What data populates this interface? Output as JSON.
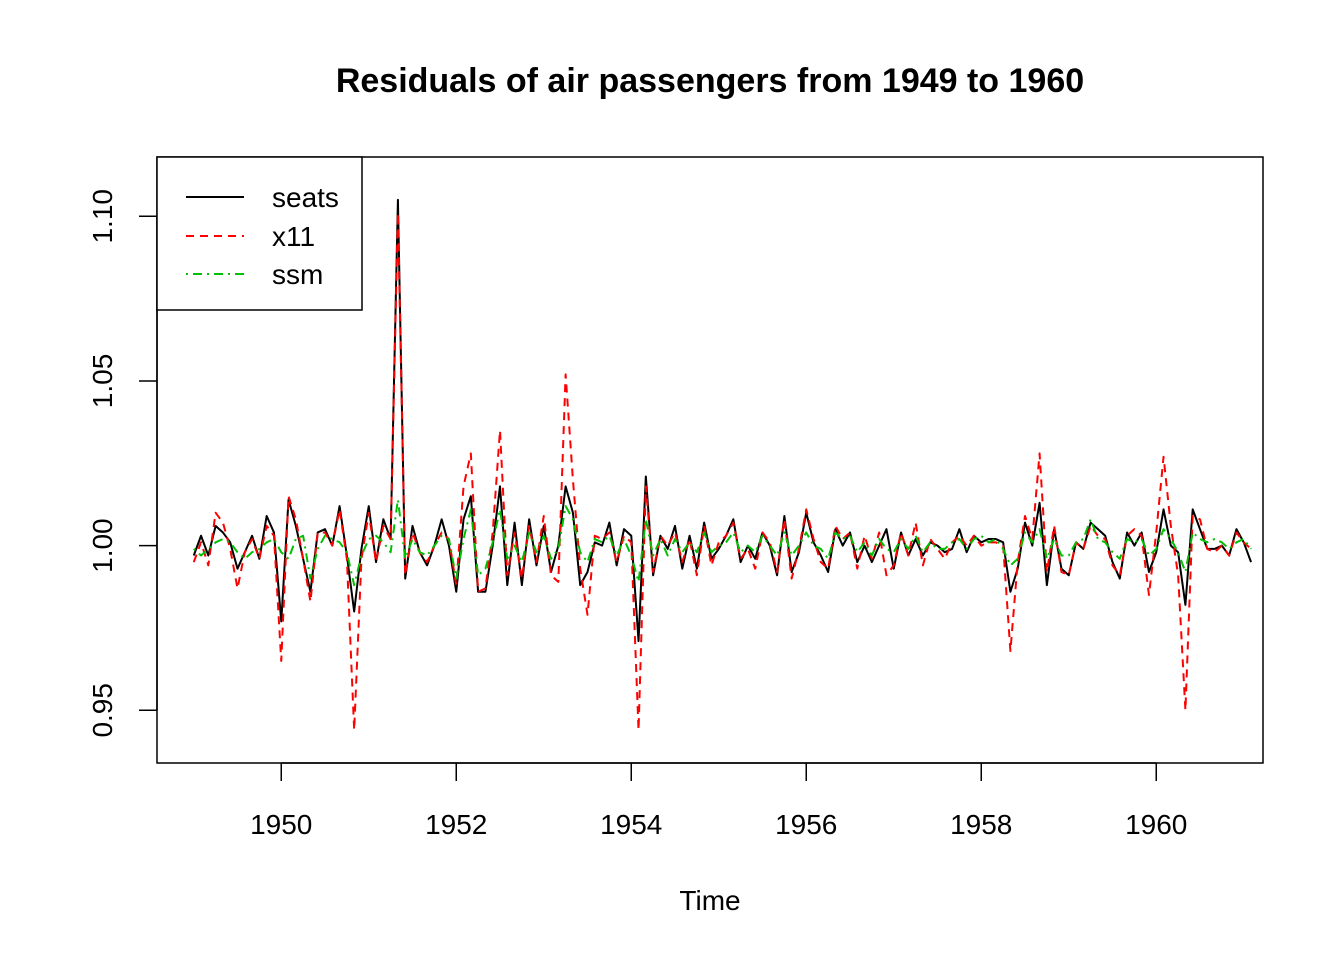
{
  "chart_data": {
    "type": "line",
    "title": "Residuals of air passengers from 1949 to 1960",
    "xlabel": "Time",
    "ylabel": "",
    "xlim": [
      1948.58,
      1961.22
    ],
    "ylim": [
      0.934,
      1.118
    ],
    "x_ticks": [
      1950,
      1952,
      1954,
      1956,
      1958,
      1960
    ],
    "x_tick_labels": [
      "1950",
      "1952",
      "1954",
      "1956",
      "1958",
      "1960"
    ],
    "y_ticks": [
      0.95,
      1.0,
      1.05,
      1.1
    ],
    "y_tick_labels": [
      "0.95",
      "1.00",
      "1.05",
      "1.10"
    ],
    "legend_placement": "top-left",
    "grid": false,
    "x_start": 1949.0,
    "x_step": 0.083333,
    "series": [
      {
        "name": "seats",
        "color": "#000000",
        "dash": "solid",
        "values": [
          0.997,
          1.003,
          0.997,
          1.006,
          1.004,
          1.001,
          0.993,
          0.998,
          1.003,
          0.996,
          1.009,
          1.004,
          0.977,
          1.014,
          1.006,
          0.996,
          0.986,
          1.004,
          1.005,
          1.0,
          1.012,
          0.997,
          0.98,
          0.999,
          1.012,
          0.995,
          1.008,
          1.002,
          1.105,
          0.99,
          1.006,
          0.998,
          0.994,
          1.0,
          1.008,
          1.0,
          0.986,
          1.008,
          1.015,
          0.986,
          0.986,
          1.0,
          1.018,
          0.988,
          1.007,
          0.988,
          1.008,
          0.994,
          1.006,
          0.992,
          1.0,
          1.018,
          1.01,
          0.988,
          0.992,
          1.001,
          1.0,
          1.007,
          0.994,
          1.005,
          1.003,
          0.971,
          1.021,
          0.991,
          1.003,
          0.999,
          1.006,
          0.993,
          1.003,
          0.993,
          1.007,
          0.996,
          0.999,
          1.003,
          1.008,
          0.995,
          1.0,
          0.996,
          1.004,
          1.0,
          0.991,
          1.009,
          0.992,
          0.998,
          1.01,
          1.001,
          0.997,
          0.992,
          1.005,
          1.0,
          1.004,
          0.995,
          1.0,
          0.995,
          1.0,
          1.005,
          0.993,
          1.004,
          0.997,
          1.002,
          0.997,
          1.001,
          1.0,
          0.998,
          0.999,
          1.005,
          0.998,
          1.003,
          1.001,
          1.002,
          1.002,
          1.001,
          0.986,
          0.993,
          1.007,
          1.0,
          1.013,
          0.988,
          1.005,
          0.993,
          0.991,
          1.001,
          0.999,
          1.007,
          1.005,
          1.003,
          0.995,
          0.99,
          1.004,
          1.0,
          1.004,
          0.992,
          0.998,
          1.011,
          1.0,
          0.998,
          0.982,
          1.011,
          1.005,
          0.999,
          0.999,
          1.0,
          0.997,
          1.005,
          1.001,
          0.995
        ]
      },
      {
        "name": "x11",
        "color": "#ff0000",
        "dash": "dashed",
        "values": [
          0.995,
          1.001,
          0.994,
          1.01,
          1.007,
          0.999,
          0.987,
          0.998,
          1.002,
          0.996,
          1.006,
          1.003,
          0.965,
          1.015,
          1.008,
          0.996,
          0.983,
          1.004,
          1.004,
          1.0,
          1.011,
          0.996,
          0.944,
          0.996,
          1.01,
          0.995,
          1.006,
          1.002,
          1.101,
          0.991,
          1.004,
          0.998,
          0.995,
          1.0,
          1.004,
          1.002,
          0.988,
          1.018,
          1.028,
          0.986,
          0.987,
          1.004,
          1.035,
          0.991,
          1.004,
          0.99,
          1.006,
          0.995,
          1.009,
          0.991,
          0.989,
          1.052,
          1.02,
          0.993,
          0.979,
          1.003,
          1.002,
          1.004,
          0.995,
          1.003,
          1.001,
          0.944,
          1.018,
          0.992,
          1.003,
          1.0,
          1.004,
          0.995,
          1.002,
          0.991,
          1.006,
          0.994,
          1.001,
          1.003,
          1.007,
          0.996,
          0.999,
          0.993,
          1.004,
          1.001,
          0.992,
          1.008,
          0.99,
          0.999,
          1.011,
          1.002,
          0.995,
          0.993,
          1.006,
          1.002,
          1.004,
          0.993,
          1.003,
          0.996,
          1.004,
          0.991,
          0.994,
          1.004,
          0.997,
          1.007,
          0.994,
          1.002,
          0.999,
          0.996,
          1.001,
          1.003,
          1.0,
          1.003,
          1.0,
          1.001,
          1.001,
          1.0,
          0.968,
          0.995,
          1.009,
          1.002,
          1.028,
          0.992,
          1.006,
          0.992,
          0.991,
          1.001,
          0.999,
          1.006,
          1.003,
          1.002,
          0.994,
          0.991,
          1.003,
          1.005,
          1.003,
          0.985,
          1.004,
          1.027,
          1.006,
          0.991,
          0.95,
          1.009,
          1.008,
          0.999,
          0.998,
          1.0,
          0.997,
          1.004,
          1.001,
          0.999
        ]
      },
      {
        "name": "ssm",
        "color": "#00c000",
        "dash": "dotdash",
        "values": [
          0.999,
          0.997,
          0.999,
          1.001,
          1.002,
          1.001,
          0.998,
          0.996,
          0.998,
          0.999,
          1.001,
          1.002,
          0.998,
          0.996,
          1.002,
          1.003,
          0.99,
          0.999,
          1.003,
          1.002,
          1.001,
          0.998,
          0.988,
          0.997,
          1.002,
          1.003,
          1.001,
          0.998,
          1.014,
          0.996,
          1.002,
          0.998,
          0.997,
          1.0,
          1.003,
          1.002,
          0.99,
          1.002,
          1.011,
          0.991,
          0.993,
          1.001,
          1.011,
          0.996,
          1.0,
          0.995,
          1.004,
          0.998,
          1.003,
          0.996,
          0.999,
          1.012,
          1.008,
          0.998,
          0.995,
          1.002,
          1.001,
          1.003,
          0.997,
          1.002,
          0.997,
          0.989,
          1.008,
          0.997,
          1.002,
          0.997,
          1.002,
          0.998,
          1.001,
          0.998,
          1.004,
          0.998,
          1.0,
          1.001,
          1.004,
          0.998,
          1.0,
          0.998,
          1.003,
          1.0,
          0.997,
          1.004,
          0.997,
          1.0,
          1.004,
          1.0,
          0.999,
          0.996,
          1.004,
          1.002,
          1.003,
          0.998,
          1.001,
          0.997,
          1.002,
          0.999,
          0.998,
          1.002,
          0.999,
          1.003,
          0.998,
          1.001,
          0.999,
          0.999,
          1.001,
          1.002,
          0.999,
          1.002,
          1.003,
          1.001,
          1.002,
          0.999,
          0.994,
          0.996,
          1.004,
          1.001,
          1.005,
          0.996,
          1.002,
          0.997,
          0.997,
          1.001,
          1.002,
          1.008,
          1.002,
          1.001,
          0.998,
          0.996,
          1.002,
          1.001,
          1.002,
          0.997,
          0.999,
          1.005,
          1.002,
          0.998,
          0.992,
          1.004,
          1.002,
          1.001,
          1.002,
          1.001,
          0.999,
          1.001,
          1.002,
          0.999
        ]
      }
    ]
  }
}
